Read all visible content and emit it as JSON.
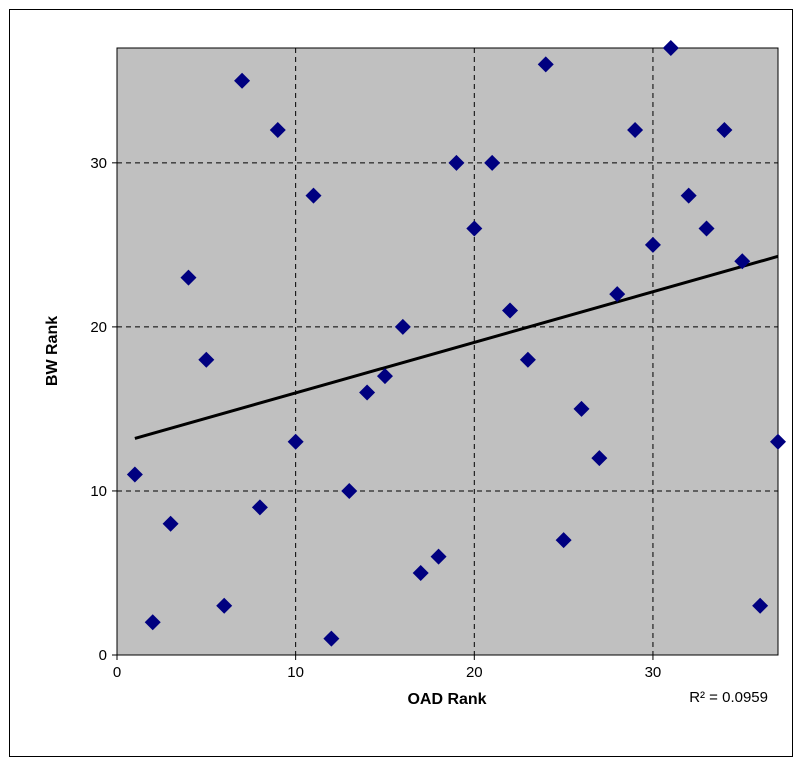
{
  "chart_data": {
    "type": "scatter",
    "title": "",
    "xlabel": "OAD Rank",
    "ylabel": "BW Rank",
    "xlim": [
      0,
      37
    ],
    "ylim": [
      0,
      37
    ],
    "xticks": [
      0,
      10,
      20,
      30
    ],
    "yticks": [
      0,
      10,
      20,
      30
    ],
    "grid": true,
    "plot_background": "#C0C0C0",
    "marker_color": "#000080",
    "trendline_color": "#000000",
    "points": [
      {
        "x": 1,
        "y": 11
      },
      {
        "x": 2,
        "y": 2
      },
      {
        "x": 3,
        "y": 8
      },
      {
        "x": 4,
        "y": 23
      },
      {
        "x": 5,
        "y": 18
      },
      {
        "x": 6,
        "y": 3
      },
      {
        "x": 7,
        "y": 35
      },
      {
        "x": 8,
        "y": 9
      },
      {
        "x": 9,
        "y": 32
      },
      {
        "x": 10,
        "y": 13
      },
      {
        "x": 11,
        "y": 28
      },
      {
        "x": 12,
        "y": 1
      },
      {
        "x": 13,
        "y": 10
      },
      {
        "x": 14,
        "y": 16
      },
      {
        "x": 15,
        "y": 17
      },
      {
        "x": 16,
        "y": 20
      },
      {
        "x": 17,
        "y": 5
      },
      {
        "x": 18,
        "y": 6
      },
      {
        "x": 19,
        "y": 30
      },
      {
        "x": 20,
        "y": 26
      },
      {
        "x": 21,
        "y": 30
      },
      {
        "x": 22,
        "y": 21
      },
      {
        "x": 23,
        "y": 18
      },
      {
        "x": 24,
        "y": 36
      },
      {
        "x": 25,
        "y": 7
      },
      {
        "x": 26,
        "y": 15
      },
      {
        "x": 27,
        "y": 12
      },
      {
        "x": 28,
        "y": 22
      },
      {
        "x": 29,
        "y": 32
      },
      {
        "x": 30,
        "y": 25
      },
      {
        "x": 31,
        "y": 37
      },
      {
        "x": 32,
        "y": 28
      },
      {
        "x": 33,
        "y": 26
      },
      {
        "x": 34,
        "y": 32
      },
      {
        "x": 35,
        "y": 24
      },
      {
        "x": 36,
        "y": 3
      },
      {
        "x": 37,
        "y": 13
      }
    ],
    "trendline": {
      "type": "linear",
      "x": [
        1,
        37
      ],
      "y": [
        13.2,
        24.3
      ]
    },
    "r_squared_label": "R² = 0.0959"
  }
}
